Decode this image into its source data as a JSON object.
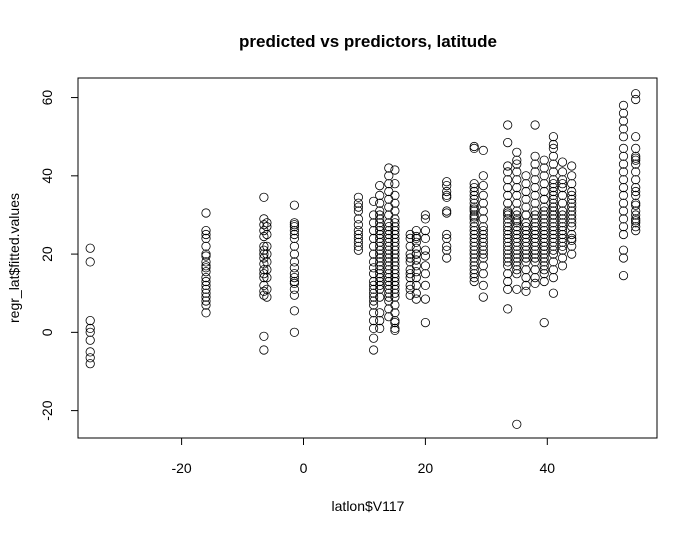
{
  "chart_data": {
    "type": "scatter",
    "title": "predicted vs predictors, latitude",
    "xlabel": "latlon$V117",
    "ylabel": "regr_lat$fitted.values",
    "xlim": [
      -37,
      58
    ],
    "ylim": [
      -27,
      65
    ],
    "xticks": [
      -20,
      0,
      20,
      40
    ],
    "yticks": [
      -20,
      0,
      20,
      40,
      60
    ],
    "grid": false,
    "legend": "none",
    "colors": {
      "points": "#000000",
      "background": "#ffffff"
    },
    "x": [
      -35,
      -35,
      -35,
      -35,
      -35,
      -35,
      -35,
      -35,
      -35,
      -16,
      -16,
      -16,
      -16,
      -16,
      -16,
      -16,
      -16,
      -16,
      -16,
      -16,
      -16,
      -16,
      -16,
      -16,
      -16,
      -16,
      -16,
      -16,
      -16,
      -6.5,
      -6.5,
      -6.5,
      -6.5,
      -6.5,
      -6.5,
      -6.5,
      -6.5,
      -6.5,
      -6.5,
      -6.5,
      -6.5,
      -6.5,
      -6.5,
      -6.5,
      -6.5,
      -6.5,
      -6.5,
      -6,
      -6,
      -6,
      -6,
      -6,
      -6,
      -6,
      -6,
      -6,
      -6,
      -1.5,
      -1.5,
      -1.5,
      -1.5,
      -1.5,
      -1.5,
      -1.5,
      -1.5,
      -1.5,
      -1.5,
      -1.5,
      -1.5,
      -1.5,
      -1.5,
      -1.5,
      -1.5,
      -1.5,
      -1.5,
      -1.5,
      9,
      9,
      9,
      9,
      9,
      9,
      9,
      9,
      9,
      9,
      9,
      9,
      11.5,
      11.5,
      11.5,
      11.5,
      11.5,
      11.5,
      11.5,
      11.5,
      11.5,
      11.5,
      11.5,
      11.5,
      11.5,
      11.5,
      11.5,
      11.5,
      11.5,
      11.5,
      11.5,
      11.5,
      11.5,
      11.5,
      12.5,
      12.5,
      12.5,
      12.5,
      12.5,
      12.5,
      12.5,
      12.5,
      12.5,
      12.5,
      12.5,
      12.5,
      12.5,
      12.5,
      12.5,
      12.5,
      12.5,
      12.5,
      12.5,
      12.5,
      12.5,
      12.5,
      12.5,
      12.5,
      12.5,
      12.5,
      12.5,
      12.5,
      14,
      14,
      14,
      14,
      14,
      14,
      14,
      14,
      14,
      14,
      14,
      14,
      14,
      14,
      14,
      14,
      14,
      14,
      14,
      14,
      14,
      14,
      14,
      14,
      14,
      14,
      14,
      14,
      14,
      14,
      15,
      15,
      15,
      15,
      15,
      15,
      15,
      15,
      15,
      15,
      15,
      15,
      15,
      15,
      15,
      15,
      15,
      15,
      15,
      15,
      15,
      15,
      15,
      15,
      15,
      15,
      15,
      15,
      15,
      15,
      15,
      15,
      17.5,
      17.5,
      17.5,
      17.5,
      17.5,
      17.5,
      17.5,
      17.5,
      17.5,
      17.5,
      17.5,
      17.5,
      18.5,
      18.5,
      18.5,
      18.5,
      18.5,
      18.5,
      18.5,
      18.5,
      18.5,
      18.5,
      18.5,
      18.5,
      18.5,
      18.5,
      20,
      20,
      20,
      20,
      20,
      20,
      20,
      20,
      20,
      20,
      20,
      23.5,
      23.5,
      23.5,
      23.5,
      23.5,
      23.5,
      23.5,
      23.5,
      23.5,
      23.5,
      23.5,
      23.5,
      28,
      28,
      28,
      28,
      28,
      28,
      28,
      28,
      28,
      28,
      28,
      28,
      28,
      28,
      28,
      28,
      28,
      28,
      28,
      28,
      28,
      28,
      28,
      28,
      28,
      28,
      28,
      28,
      28,
      28,
      29.5,
      29.5,
      29.5,
      29.5,
      29.5,
      29.5,
      29.5,
      29.5,
      29.5,
      29.5,
      29.5,
      29.5,
      29.5,
      29.5,
      29.5,
      29.5,
      29.5,
      29.5,
      29.5,
      29.5,
      33.5,
      33.5,
      33.5,
      33.5,
      33.5,
      33.5,
      33.5,
      33.5,
      33.5,
      33.5,
      33.5,
      33.5,
      33.5,
      33.5,
      33.5,
      33.5,
      33.5,
      33.5,
      33.5,
      33.5,
      33.5,
      33.5,
      33.5,
      33.5,
      33.5,
      33.5,
      33.5,
      33.5,
      35,
      35,
      35,
      35,
      35,
      35,
      35,
      35,
      35,
      35,
      35,
      35,
      35,
      35,
      35,
      35,
      35,
      35,
      35,
      35,
      35,
      35,
      35,
      35,
      35,
      35,
      35,
      35,
      36.5,
      36.5,
      36.5,
      36.5,
      36.5,
      36.5,
      36.5,
      36.5,
      36.5,
      36.5,
      36.5,
      36.5,
      36.5,
      36.5,
      36.5,
      36.5,
      36.5,
      36.5,
      36.5,
      36.5,
      36.5,
      36.5,
      38,
      38,
      38,
      38,
      38,
      38,
      38,
      38,
      38,
      38,
      38,
      38,
      38,
      38,
      38,
      38,
      38,
      38,
      38,
      38,
      38,
      38,
      38,
      38,
      38,
      39.5,
      39.5,
      39.5,
      39.5,
      39.5,
      39.5,
      39.5,
      39.5,
      39.5,
      39.5,
      39.5,
      39.5,
      39.5,
      39.5,
      39.5,
      39.5,
      39.5,
      39.5,
      39.5,
      39.5,
      39.5,
      39.5,
      39.5,
      39.5,
      39.5,
      39.5,
      39.5,
      39.5,
      41,
      41,
      41,
      41,
      41,
      41,
      41,
      41,
      41,
      41,
      41,
      41,
      41,
      41,
      41,
      41,
      41,
      41,
      41,
      41,
      41,
      41,
      41,
      41,
      41,
      41,
      41,
      41,
      41,
      41,
      41,
      41,
      42.5,
      42.5,
      42.5,
      42.5,
      42.5,
      42.5,
      42.5,
      42.5,
      42.5,
      42.5,
      42.5,
      42.5,
      42.5,
      42.5,
      42.5,
      42.5,
      42.5,
      42.5,
      42.5,
      42.5,
      44,
      44,
      44,
      44,
      44,
      44,
      44,
      44,
      44,
      44,
      44,
      44,
      44,
      44,
      44,
      44,
      44,
      44,
      52.5,
      52.5,
      52.5,
      52.5,
      52.5,
      52.5,
      52.5,
      52.5,
      52.5,
      52.5,
      52.5,
      52.5,
      52.5,
      52.5,
      52.5,
      52.5,
      52.5,
      52.5,
      52.5,
      52.5,
      54.5,
      54.5,
      54.5,
      54.5,
      54.5,
      54.5,
      54.5,
      54.5,
      54.5,
      54.5,
      54.5,
      54.5,
      54.5,
      54.5,
      54.5,
      54.5,
      54.5,
      54.5,
      54.5,
      54.5,
      54.5,
      54.5
    ],
    "y": [
      21.5,
      18,
      3,
      1,
      0,
      -2,
      -5,
      -6.5,
      -8,
      30.5,
      26,
      25,
      22,
      19.5,
      17,
      16.5,
      15.5,
      14,
      13,
      12,
      11,
      10,
      9,
      8,
      7,
      5,
      20,
      24,
      18,
      34.5,
      29,
      27.5,
      26,
      24.5,
      22,
      21,
      19,
      17.5,
      16,
      14,
      12,
      10.5,
      9.5,
      -1,
      -4.5,
      20,
      15,
      28,
      27,
      25,
      22,
      20,
      18,
      16,
      14,
      11,
      9,
      32.5,
      28,
      27,
      26,
      25,
      24,
      22,
      20,
      18,
      16.5,
      15,
      14,
      13,
      11,
      9.5,
      5.5,
      0,
      27.5,
      12.5,
      34.5,
      33,
      31,
      29,
      27.5,
      26,
      25,
      24,
      23,
      22,
      21,
      32,
      33.5,
      30,
      28,
      26,
      24,
      22,
      20,
      18,
      16.5,
      15,
      13,
      12,
      11,
      10,
      9,
      8,
      7,
      5,
      3,
      1,
      -1.5,
      -4.5,
      37.5,
      35,
      33,
      31,
      30,
      29,
      28,
      27,
      26,
      25,
      24,
      23,
      22,
      21,
      20,
      19,
      18,
      17,
      16,
      15,
      14,
      13,
      12,
      11,
      9,
      5,
      3,
      1,
      42,
      40,
      38,
      36,
      34,
      32,
      30,
      28,
      27,
      26,
      25,
      24,
      23,
      22,
      21,
      20,
      19,
      18,
      17,
      16,
      15,
      14,
      13,
      12,
      11,
      10,
      9,
      8,
      6,
      4,
      41.5,
      38,
      35,
      33,
      31,
      29,
      28,
      27,
      26,
      25,
      24,
      23,
      22,
      21,
      20,
      19,
      18,
      17,
      16,
      15,
      14,
      13,
      12,
      11,
      10,
      9,
      7,
      5,
      3,
      1,
      0.5,
      2.5,
      25,
      24,
      22,
      20,
      18,
      16,
      15,
      14,
      12,
      11,
      9.5,
      19,
      26,
      24.5,
      23,
      21.5,
      20,
      18.5,
      17,
      15.5,
      14,
      12,
      10,
      8.5,
      24,
      20,
      30,
      29,
      26,
      24,
      21,
      19.5,
      17,
      15,
      12,
      8.5,
      2.5,
      38.5,
      37.5,
      36,
      35,
      31,
      30.5,
      25,
      24,
      21,
      19,
      34.5,
      22,
      47.5,
      47,
      38,
      37,
      36,
      35,
      34,
      33,
      32,
      31,
      30,
      29,
      28,
      27,
      26,
      25,
      24,
      23,
      22,
      21,
      20,
      19,
      18,
      17,
      16,
      15,
      14,
      13,
      31.5,
      29.5,
      46.5,
      40,
      37.5,
      35,
      33,
      31,
      29,
      27,
      26,
      25,
      24,
      23,
      22,
      21,
      20,
      19,
      17,
      15,
      12,
      9,
      53,
      48.5,
      42.5,
      41,
      39,
      37,
      35,
      33,
      31,
      30,
      29,
      28,
      27,
      26,
      25,
      24,
      23,
      22,
      21,
      20,
      19,
      18,
      17,
      15,
      13,
      11,
      6,
      30.5,
      46,
      44,
      43,
      41,
      39,
      37,
      35,
      33,
      31,
      30,
      29,
      28,
      27,
      26,
      25,
      24,
      23,
      22,
      21,
      20,
      19,
      18,
      17,
      16,
      15,
      11,
      -23.5,
      28.5,
      40,
      38,
      36,
      34,
      32,
      30,
      28,
      27,
      26,
      25,
      24,
      23,
      22,
      21,
      20,
      19,
      18,
      16,
      14,
      12,
      10.5,
      30,
      53,
      45,
      43,
      41,
      39,
      37,
      35,
      33,
      31,
      30,
      29,
      28,
      27,
      26,
      25,
      24,
      23,
      22,
      21,
      20,
      19,
      18,
      16,
      14,
      12.5,
      44,
      42,
      40,
      38,
      36,
      34,
      32,
      31,
      30,
      29,
      28,
      27,
      26,
      25,
      24,
      23,
      22,
      21,
      20,
      19,
      18,
      17,
      16,
      15,
      13,
      22,
      2.5,
      34,
      50,
      48,
      47,
      45,
      43,
      41,
      39,
      37,
      36,
      35,
      34,
      33,
      32,
      31,
      30,
      29,
      28,
      27,
      26,
      25,
      24,
      23,
      22,
      21,
      20,
      18,
      16,
      14,
      10,
      38,
      32,
      30,
      43.5,
      41,
      39,
      37,
      35,
      33,
      31,
      30,
      29,
      28,
      27,
      26,
      25,
      24,
      23,
      22,
      21,
      19,
      17,
      38,
      42.5,
      40,
      38,
      36,
      35,
      34,
      33,
      32,
      31,
      30,
      29,
      28,
      27,
      25,
      23.5,
      22,
      20,
      24,
      58,
      56,
      54,
      52,
      50,
      47,
      45,
      43,
      41,
      39,
      37,
      35,
      33,
      31,
      29,
      27,
      25,
      21,
      19,
      14.5,
      61,
      59.5,
      50,
      47,
      45,
      44,
      43,
      41,
      39,
      37,
      35,
      33,
      31,
      30,
      29,
      28,
      27,
      26,
      44.5,
      36,
      32.5,
      28.5
    ]
  }
}
